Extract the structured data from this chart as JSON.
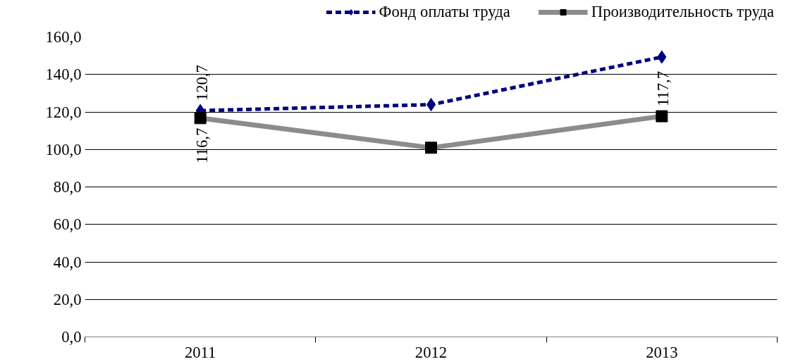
{
  "chart_data": {
    "type": "line",
    "categories": [
      "2011",
      "2012",
      "2013"
    ],
    "series": [
      {
        "name": "Фонд оплаты труда",
        "color": "#000080",
        "values": [
          120.7,
          123.9,
          149.3
        ],
        "marker": "diamond",
        "line_style": "dashed",
        "value_labels": [
          "120,7",
          null,
          null
        ]
      },
      {
        "name": "Производительность труда",
        "color": "#8c8c8c",
        "values": [
          116.7,
          100.9,
          117.7
        ],
        "marker": "square",
        "line_style": "solid",
        "value_labels": [
          "116,7",
          null,
          "117,7"
        ]
      }
    ],
    "ylim": [
      0,
      160
    ],
    "yticks": [
      {
        "value": 0,
        "label": "0,0"
      },
      {
        "value": 20,
        "label": "20,0"
      },
      {
        "value": 40,
        "label": "40,0"
      },
      {
        "value": 60,
        "label": "60,0"
      },
      {
        "value": 80,
        "label": "80,0"
      },
      {
        "value": 100,
        "label": "100,0"
      },
      {
        "value": 120,
        "label": "120,0"
      },
      {
        "value": 140,
        "label": "140,0"
      },
      {
        "value": 160,
        "label": "160,0"
      }
    ],
    "grid": "y",
    "legend": "top"
  }
}
